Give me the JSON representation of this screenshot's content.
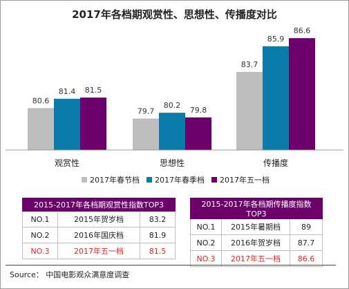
{
  "chart_data": {
    "type": "bar",
    "title": "2017年各档期观赏性、思想性、传播度对比",
    "categories": [
      "观赏性",
      "思想性",
      "传播度"
    ],
    "series": [
      {
        "name": "2017年春节档",
        "color": "#bdbdbd",
        "values": [
          80.6,
          79.7,
          83.7
        ]
      },
      {
        "name": "2017年春季档",
        "color": "#0a7aa8",
        "values": [
          81.4,
          80.2,
          85.9
        ]
      },
      {
        "name": "2017年五一档",
        "color": "#6b006b",
        "values": [
          81.5,
          79.8,
          86.6
        ]
      }
    ],
    "ylim": [
      77,
      87.5
    ],
    "grid": false,
    "legend": "bottom"
  },
  "table_a": {
    "header": "2015-2017年各档期观赏性指数TOP3",
    "rows": [
      {
        "rank": "NO.1",
        "period": "2015年贺岁档",
        "value": "83.2",
        "highlight": false
      },
      {
        "rank": "NO.2",
        "period": "2016年国庆档",
        "value": "81.9",
        "highlight": false
      },
      {
        "rank": "NO.3",
        "period": "2017年五一档",
        "value": "81.5",
        "highlight": true
      }
    ]
  },
  "table_b": {
    "header": "2015-2017年各档期传播度指数TOP3",
    "rows": [
      {
        "rank": "NO.1",
        "period": "2015年暑期档",
        "value": "89",
        "highlight": false
      },
      {
        "rank": "NO.2",
        "period": "2016年贺岁档",
        "value": "87.7",
        "highlight": false
      },
      {
        "rank": "NO.3",
        "period": "2017年五一档",
        "value": "86.6",
        "highlight": true
      }
    ]
  },
  "source": {
    "label": "Source：",
    "text": "中国电影观众满意度调查"
  }
}
